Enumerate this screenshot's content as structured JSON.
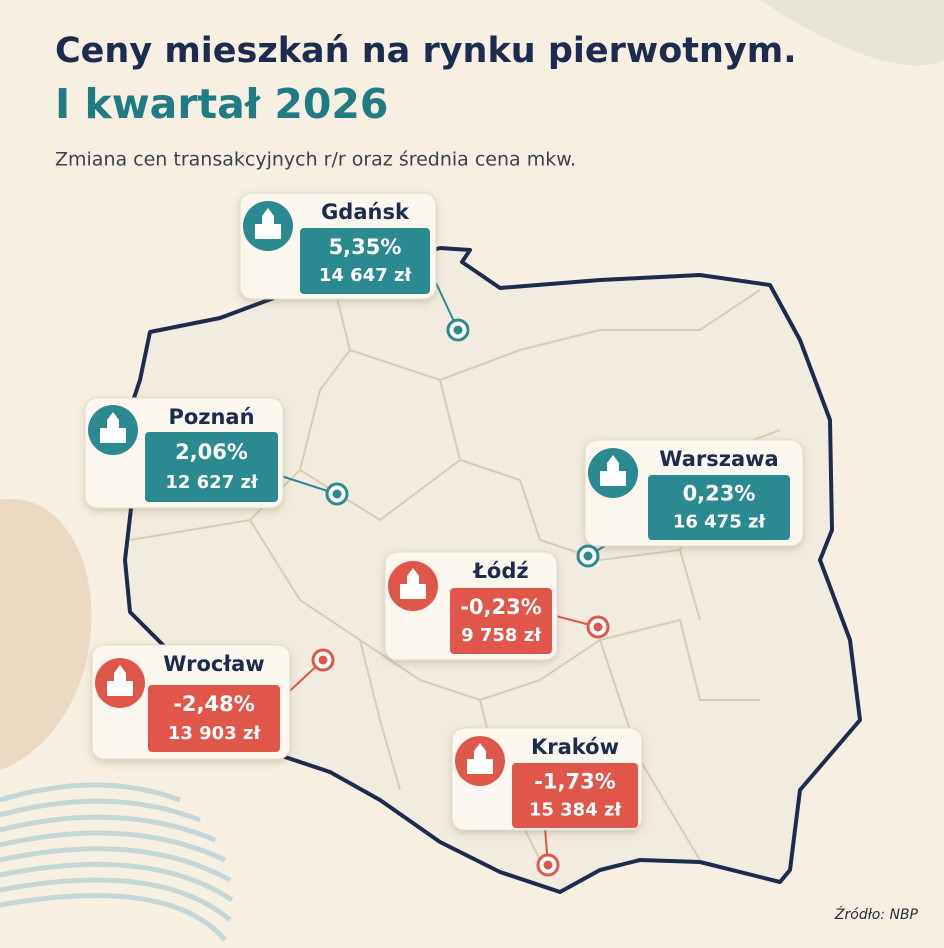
{
  "header": {
    "title": "Ceny mieszkań na rynku pierwotnym.",
    "period": "I kwartał 2026",
    "subtitle": "Zmiana cen transakcyjnych r/r oraz średnia cena mkw."
  },
  "cities": [
    {
      "name": "Gdańsk",
      "change": "5,35%",
      "price": "14 647 zł",
      "color": "#2a8a8f"
    },
    {
      "name": "Poznań",
      "change": "2,06%",
      "price": "12 627 zł",
      "color": "#2a8a8f"
    },
    {
      "name": "Warszawa",
      "change": "0,23%",
      "price": "16 475 zł",
      "color": "#2a8a8f"
    },
    {
      "name": "Łódź",
      "change": "-0,23%",
      "price": "9 758 zł",
      "color": "#e0574a"
    },
    {
      "name": "Wrocław",
      "change": "-2,48%",
      "price": "13 903 zł",
      "color": "#e0574a"
    },
    {
      "name": "Kraków",
      "change": "-1,73%",
      "price": "15 384 zł",
      "color": "#e0574a"
    }
  ],
  "source": "Źródło: NBP"
}
